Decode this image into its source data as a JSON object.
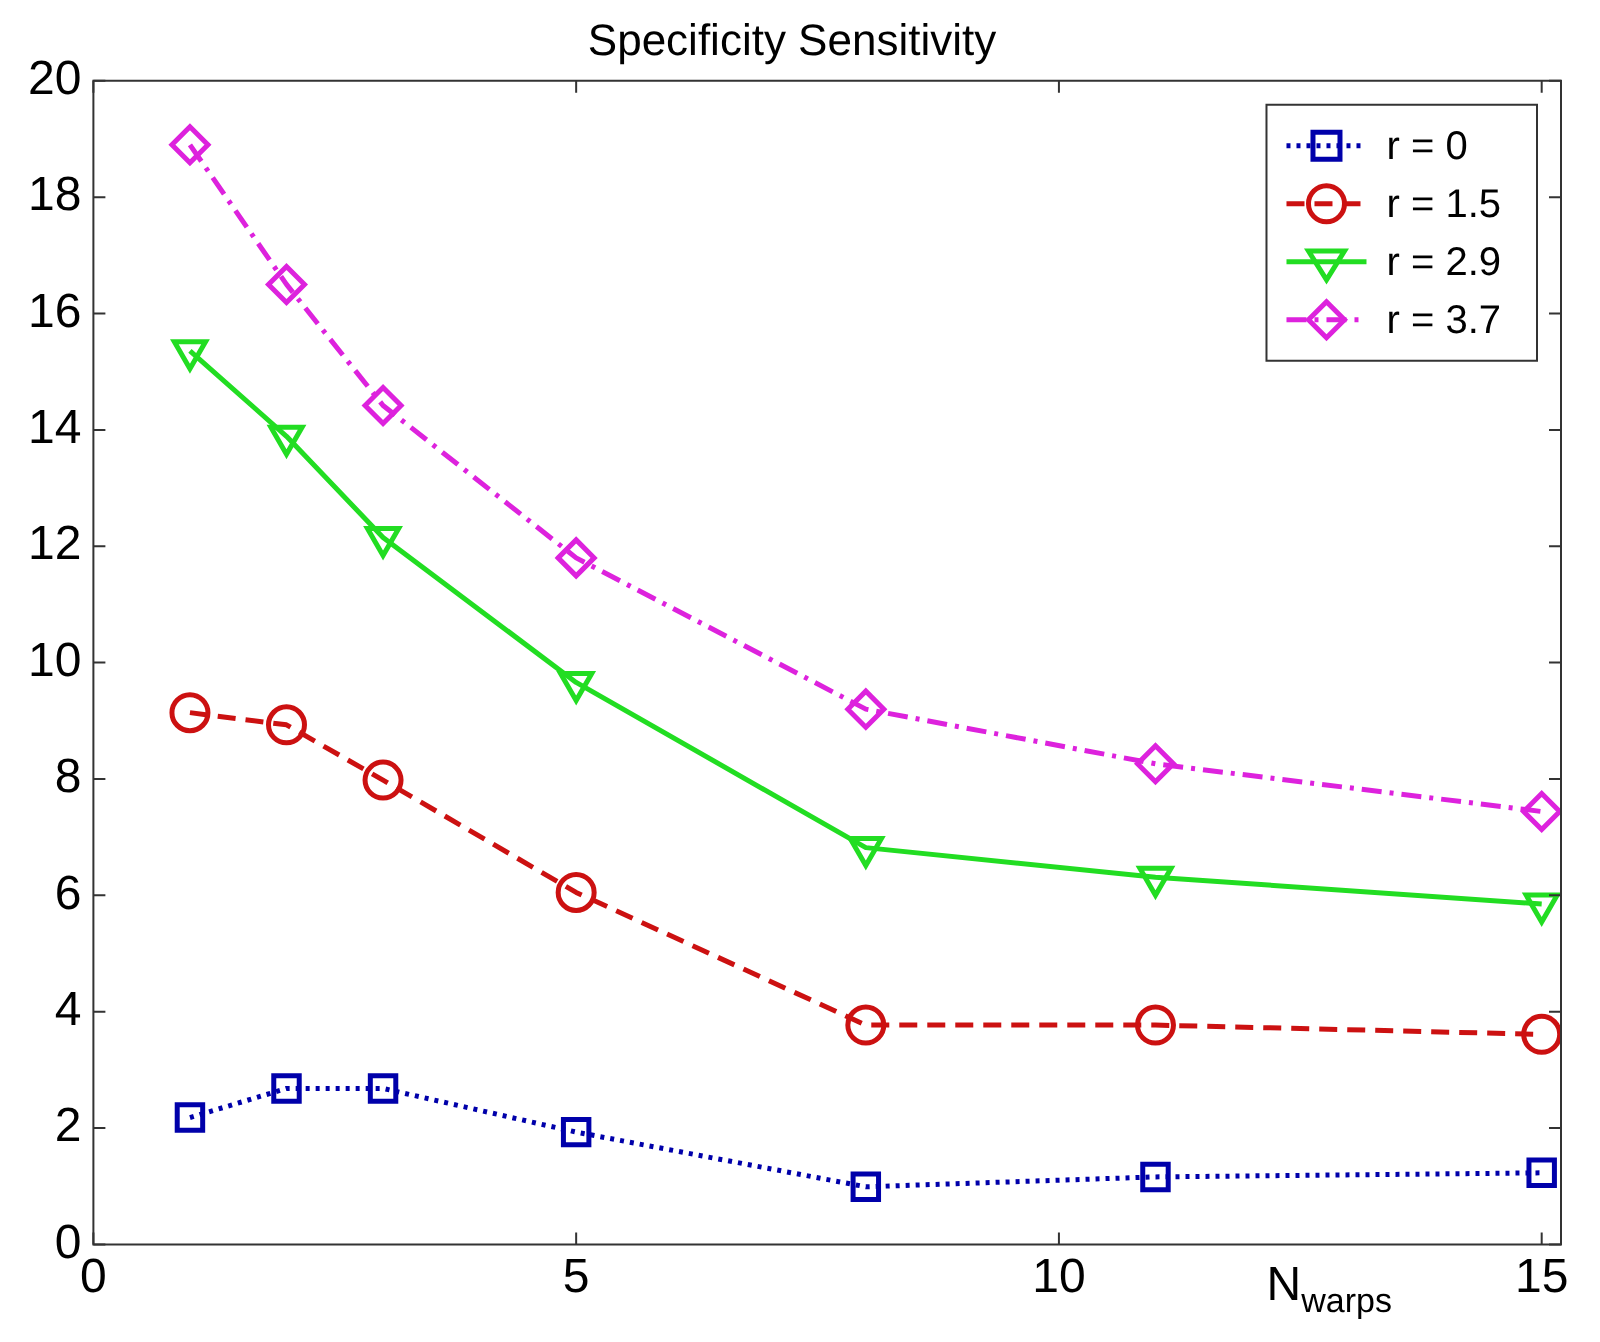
{
  "chart_data": {
    "type": "line",
    "title": "Specificity Sensitivity",
    "xlabel": "N$_{warps}$",
    "x": [
      1,
      2,
      3,
      5,
      8,
      11,
      15
    ],
    "series": [
      {
        "name": "r = 0",
        "color": "#0000aa",
        "marker": "square",
        "line_style": "dotted",
        "values": [
          2.18,
          2.68,
          2.68,
          1.93,
          0.99,
          1.16,
          1.23
        ]
      },
      {
        "name": "r = 1.5",
        "color": "#cc1111",
        "marker": "circle",
        "line_style": "dashed",
        "values": [
          9.14,
          8.93,
          7.98,
          6.05,
          3.77,
          3.77,
          3.61
        ]
      },
      {
        "name": "r = 2.9",
        "color": "#22dd22",
        "marker": "triangle",
        "line_style": "solid",
        "values": [
          15.36,
          13.89,
          12.15,
          9.66,
          6.82,
          6.31,
          5.85
        ]
      },
      {
        "name": "r = 3.7",
        "color": "#dd22dd",
        "marker": "diamond",
        "line_style": "dashdot",
        "values": [
          18.9,
          16.5,
          14.42,
          11.8,
          9.2,
          8.26,
          7.44
        ]
      }
    ],
    "xlim": [
      0,
      15.2
    ],
    "xticks": [
      0,
      5,
      10,
      15
    ],
    "ylim": [
      0,
      20
    ],
    "yticks": [
      0,
      2,
      4,
      6,
      8,
      10,
      12,
      14,
      16,
      18,
      20
    ],
    "grid": false,
    "legend": "top right"
  }
}
